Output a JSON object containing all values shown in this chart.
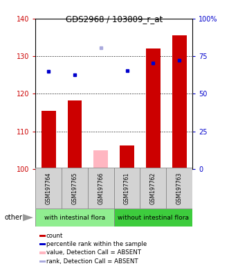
{
  "title": "GDS2968 / 103809_r_at",
  "samples": [
    "GSM197764",
    "GSM197765",
    "GSM197766",
    "GSM197761",
    "GSM197762",
    "GSM197763"
  ],
  "bar_values": [
    115.5,
    118.2,
    105.0,
    106.2,
    132.0,
    135.5
  ],
  "bar_absent": [
    false,
    false,
    true,
    false,
    false,
    false
  ],
  "rank_values": [
    126.0,
    125.0,
    132.2,
    126.2,
    128.2,
    129.0
  ],
  "rank_absent": [
    false,
    false,
    true,
    false,
    false,
    false
  ],
  "ylim_left": [
    100,
    140
  ],
  "yticks_left": [
    100,
    110,
    120,
    130,
    140
  ],
  "ytick_labels_left": [
    "100",
    "110",
    "120",
    "130",
    "140"
  ],
  "yticks_right_labels": [
    "0",
    "25",
    "50",
    "75",
    "100%"
  ],
  "yticks_right_vals": [
    0,
    25,
    50,
    75,
    100
  ],
  "group1_label": "with intestinal flora",
  "group2_label": "without intestinal flora",
  "group1_color": "#90EE90",
  "group2_color": "#3DCC3D",
  "bar_color_present": "#CC0000",
  "bar_color_absent": "#FFB6C1",
  "rank_color_present": "#0000CC",
  "rank_color_absent": "#AAAADD",
  "legend_items": [
    {
      "label": "count",
      "color": "#CC0000"
    },
    {
      "label": "percentile rank within the sample",
      "color": "#0000CC"
    },
    {
      "label": "value, Detection Call = ABSENT",
      "color": "#FFB6C1"
    },
    {
      "label": "rank, Detection Call = ABSENT",
      "color": "#AAAADD"
    }
  ],
  "other_label": "other",
  "bar_width": 0.55,
  "background_color": "#ffffff",
  "axis_label_color_left": "#CC0000",
  "axis_label_color_right": "#0000CC",
  "sample_box_color": "#D3D3D3",
  "sample_box_edge": "#888888"
}
